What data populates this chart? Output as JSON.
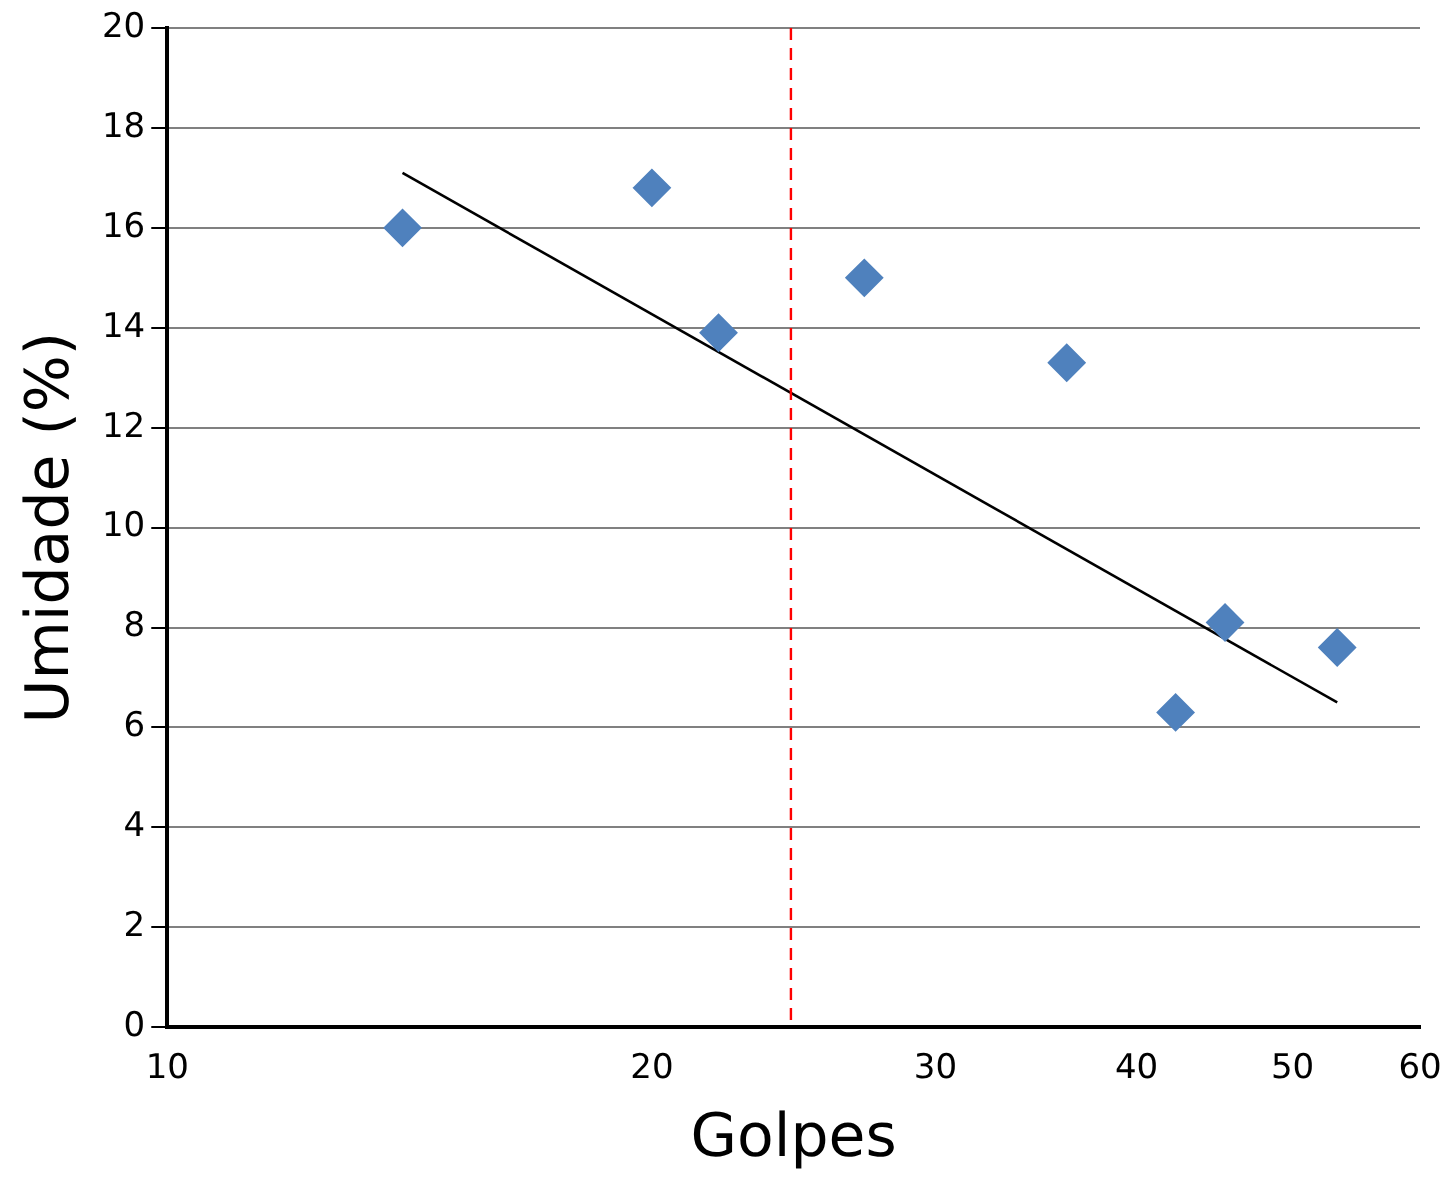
{
  "chart_data": {
    "type": "scatter",
    "xlabel": "Golpes",
    "ylabel": "Umidade (%)",
    "log": "x",
    "xlim": [
      10,
      60
    ],
    "xticks": [
      10,
      20,
      30,
      40,
      50,
      60
    ],
    "ylim": [
      0,
      20
    ],
    "yticks": [
      0,
      2,
      4,
      6,
      8,
      10,
      12,
      14,
      16,
      18,
      20
    ],
    "grid": "y",
    "legend": false,
    "series": [
      {
        "type": "scatter",
        "marker": "diamond",
        "color": "#4f81bd",
        "x": [
          14,
          20,
          22,
          27.1,
          36.2,
          42.3,
          45.4,
          53.3
        ],
        "values": [
          16.0,
          16.8,
          13.9,
          15.0,
          13.3,
          6.3,
          8.1,
          7.6
        ]
      },
      {
        "type": "line",
        "marker": "none",
        "color": "#000000",
        "x": [
          14,
          53.3
        ],
        "values": [
          17.1,
          6.5
        ]
      }
    ],
    "ref_lines": [
      {
        "axis": "x",
        "value": 24.4,
        "color": "#ff0000",
        "line_style": "dashed"
      }
    ]
  }
}
